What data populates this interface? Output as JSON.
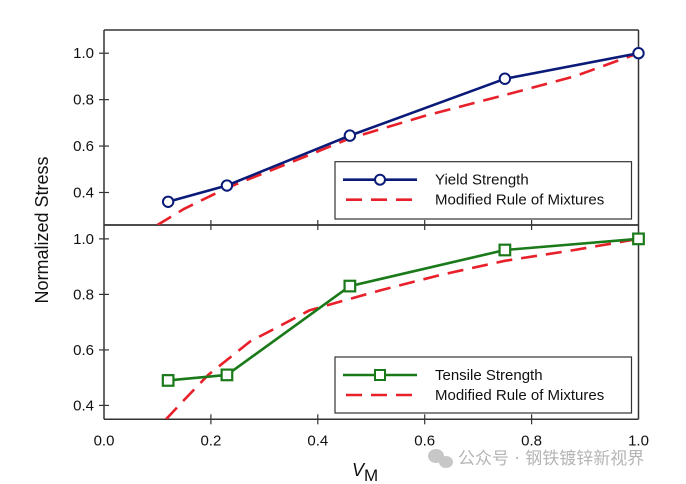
{
  "chart_data": [
    {
      "type": "line",
      "panel": "top",
      "title": "",
      "xlabel": "V_M",
      "ylabel": "Normalized Stress",
      "xlim": [
        0.0,
        1.0
      ],
      "ylim": [
        0.26,
        1.1
      ],
      "yticks": [
        0.4,
        0.6,
        0.8,
        1.0
      ],
      "ytick_labels": [
        "0.4",
        "0.6",
        "0.8",
        "1.0"
      ],
      "legend_position": "bottom-right",
      "series": [
        {
          "name": "Yield Strength",
          "color": "#0a1a78",
          "style": "solid",
          "marker": "circle",
          "x": [
            0.12,
            0.23,
            0.46,
            0.75,
            1.0
          ],
          "y": [
            0.36,
            0.43,
            0.645,
            0.89,
            1.0
          ]
        },
        {
          "name": "Modified Rule of Mixtures",
          "color": "#e8202a",
          "style": "dashed",
          "marker": "none",
          "x": [
            0.1,
            0.15,
            0.23,
            0.35,
            0.46,
            0.6,
            0.75,
            0.88,
            1.0
          ],
          "y": [
            0.26,
            0.33,
            0.42,
            0.53,
            0.633,
            0.73,
            0.82,
            0.9,
            1.0
          ]
        }
      ]
    },
    {
      "type": "line",
      "panel": "bottom",
      "title": "",
      "xlabel": "V_M",
      "ylabel": "Normalized Stress",
      "xlim": [
        0.0,
        1.0
      ],
      "ylim": [
        0.35,
        1.05
      ],
      "xticks": [
        0.0,
        0.2,
        0.4,
        0.6,
        0.8,
        1.0
      ],
      "xtick_labels": [
        "0.0",
        "0.2",
        "0.4",
        "0.6",
        "0.8",
        "1.0"
      ],
      "yticks": [
        0.4,
        0.6,
        0.8,
        1.0
      ],
      "ytick_labels": [
        "0.4",
        "0.6",
        "0.8",
        "1.0"
      ],
      "legend_position": "bottom-right",
      "series": [
        {
          "name": "Tensile Strength",
          "color": "#1a7a1a",
          "style": "solid",
          "marker": "square",
          "x": [
            0.12,
            0.23,
            0.46,
            0.75,
            1.0
          ],
          "y": [
            0.49,
            0.51,
            0.83,
            0.96,
            1.0
          ]
        },
        {
          "name": "Modified Rule of Mixtures",
          "color": "#e8202a",
          "style": "dashed",
          "marker": "none",
          "x": [
            0.116,
            0.15,
            0.195,
            0.273,
            0.385,
            0.516,
            0.629,
            0.75,
            0.88,
            1.0
          ],
          "y": [
            0.35,
            0.42,
            0.51,
            0.63,
            0.743,
            0.814,
            0.87,
            0.921,
            0.96,
            1.0
          ]
        }
      ]
    }
  ],
  "labels": {
    "ylabel": "Normalized Stress",
    "xlabel_main": "V",
    "xlabel_sub": "M"
  },
  "watermark": {
    "icon": "wechat-icon",
    "text": "公众号 · 钢铁镀锌新视界"
  }
}
